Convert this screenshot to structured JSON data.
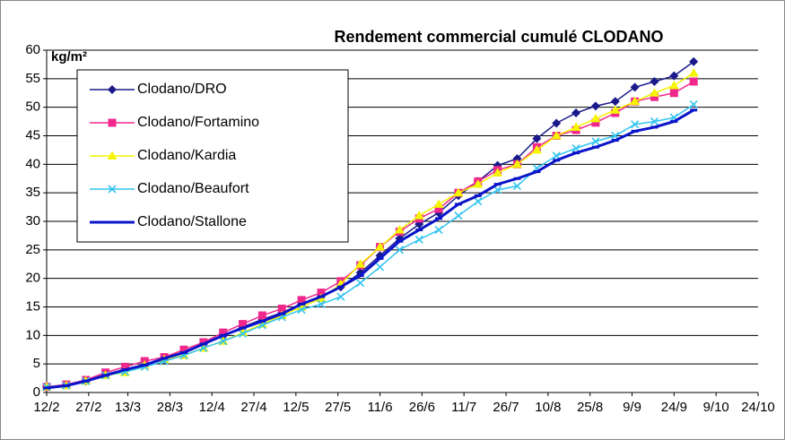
{
  "chart_data": {
    "type": "line",
    "title": "Rendement commercial cumulé CLODANO",
    "y_axis_label": "kg/m²",
    "x": [
      0,
      7,
      14,
      21,
      28,
      35,
      42,
      49,
      56,
      63,
      70,
      77,
      84,
      91,
      98,
      105,
      112,
      119,
      126,
      133,
      140,
      147,
      154,
      161,
      168,
      175,
      182,
      189,
      196,
      203,
      210,
      217,
      224,
      231
    ],
    "xlim": [
      0,
      254
    ],
    "xticks": [
      {
        "value": 0,
        "label": "12/2"
      },
      {
        "value": 15,
        "label": "27/2"
      },
      {
        "value": 29,
        "label": "13/3"
      },
      {
        "value": 44,
        "label": "28/3"
      },
      {
        "value": 59,
        "label": "12/4"
      },
      {
        "value": 74,
        "label": "27/4"
      },
      {
        "value": 89,
        "label": "12/5"
      },
      {
        "value": 104,
        "label": "27/5"
      },
      {
        "value": 119,
        "label": "11/6"
      },
      {
        "value": 134,
        "label": "26/6"
      },
      {
        "value": 149,
        "label": "11/7"
      },
      {
        "value": 164,
        "label": "26/7"
      },
      {
        "value": 179,
        "label": "10/8"
      },
      {
        "value": 194,
        "label": "25/8"
      },
      {
        "value": 209,
        "label": "9/9"
      },
      {
        "value": 224,
        "label": "24/9"
      },
      {
        "value": 239,
        "label": "9/10"
      },
      {
        "value": 254,
        "label": "24/10"
      }
    ],
    "ylim": [
      0,
      60
    ],
    "yticks": [
      0,
      5,
      10,
      15,
      20,
      25,
      30,
      35,
      40,
      45,
      50,
      55,
      60
    ],
    "grid": true,
    "legend": "upper left",
    "series": [
      {
        "name": "Clodano/DRO",
        "color": "#1a1a8c",
        "marker": "diamond",
        "values": [
          1.0,
          1.3,
          2.0,
          3.2,
          4.0,
          5.0,
          5.7,
          7.0,
          8.5,
          10.0,
          11.5,
          12.8,
          14.0,
          15.5,
          16.8,
          18.5,
          21.0,
          24.0,
          27.0,
          29.5,
          31.5,
          34.5,
          37.0,
          39.8,
          41.0,
          44.5,
          47.2,
          49.0,
          50.2,
          51.0,
          53.5,
          54.5,
          55.5,
          58.0
        ]
      },
      {
        "name": "Clodano/Fortamino",
        "color": "#f0288c",
        "marker": "square",
        "values": [
          1.0,
          1.4,
          2.2,
          3.5,
          4.5,
          5.5,
          6.2,
          7.5,
          8.8,
          10.5,
          12.0,
          13.5,
          14.7,
          16.2,
          17.5,
          19.5,
          22.3,
          25.5,
          28.2,
          30.5,
          32.2,
          35.0,
          37.0,
          39.0,
          40.0,
          43.0,
          45.0,
          46.0,
          47.3,
          49.0,
          51.0,
          51.8,
          52.5,
          54.5
        ]
      },
      {
        "name": "Clodano/Kardia",
        "color": "#f5f500",
        "marker": "triangle",
        "values": [
          1.0,
          1.2,
          2.0,
          3.0,
          3.5,
          4.8,
          5.8,
          6.5,
          7.8,
          9.0,
          10.5,
          12.0,
          13.5,
          15.0,
          16.5,
          19.0,
          22.5,
          25.5,
          28.5,
          31.0,
          33.0,
          35.0,
          36.5,
          38.5,
          40.0,
          42.5,
          45.0,
          46.5,
          48.0,
          49.5,
          51.0,
          52.5,
          53.8,
          56.0
        ]
      },
      {
        "name": "Clodano/Beaufort",
        "color": "#33c4f0",
        "marker": "x",
        "values": [
          1.0,
          1.2,
          2.0,
          3.0,
          3.6,
          4.5,
          5.5,
          6.5,
          7.8,
          9.0,
          10.3,
          11.8,
          13.2,
          14.5,
          15.5,
          16.8,
          19.2,
          22.0,
          25.0,
          26.8,
          28.5,
          31.0,
          33.5,
          35.5,
          36.2,
          39.3,
          41.5,
          42.8,
          44.0,
          45.0,
          47.0,
          47.5,
          48.2,
          50.5
        ]
      },
      {
        "name": "Clodano/Stallone",
        "color": "#0a14c8",
        "marker": "dash",
        "values": [
          0.8,
          1.2,
          2.0,
          3.0,
          4.0,
          4.8,
          6.0,
          7.0,
          8.5,
          10.0,
          11.3,
          12.5,
          13.8,
          15.5,
          16.8,
          18.5,
          20.5,
          23.5,
          26.5,
          28.5,
          30.5,
          33.0,
          34.5,
          36.5,
          37.5,
          38.7,
          40.7,
          42.0,
          43.0,
          44.2,
          45.8,
          46.5,
          47.5,
          49.5
        ]
      }
    ]
  }
}
